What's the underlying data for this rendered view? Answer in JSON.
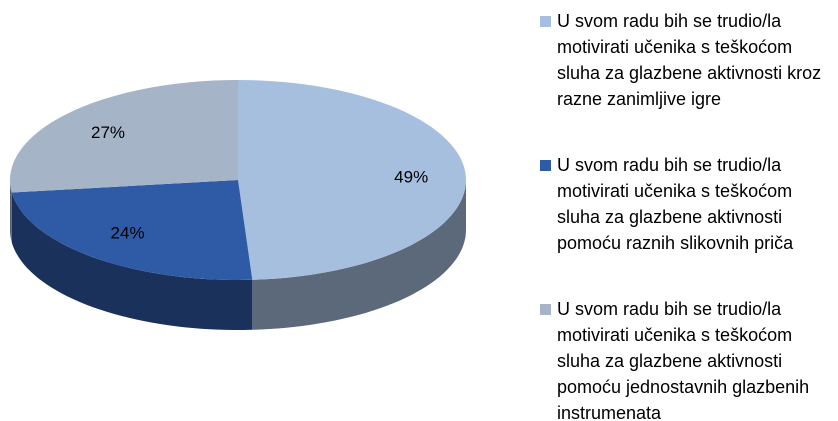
{
  "chart_data": {
    "type": "pie",
    "categories": [
      "U svom radu bih se trudio/la motivirati učenika s teškoćom sluha za glazbene aktivnosti kroz razne zanimljive igre",
      "U svom radu bih se trudio/la motivirati učenika s teškoćom sluha za glazbene aktivnosti pomoću raznih slikovnih priča",
      "U svom radu bih se trudio/la motivirati učenika s teškoćom sluha za glazbene aktivnosti pomoću jednostavnih glazbenih instrumenata"
    ],
    "values": [
      49,
      24,
      27
    ],
    "value_labels": [
      "49%",
      "24%",
      "27%"
    ],
    "colors": [
      "#a7bfdf",
      "#2f5ba6",
      "#a6b4c7"
    ],
    "legend": "right"
  }
}
